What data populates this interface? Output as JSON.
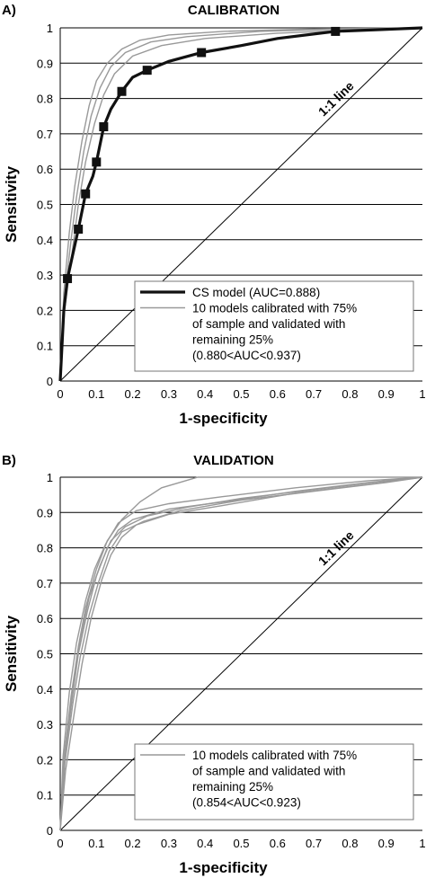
{
  "chart_data": [
    {
      "type": "line",
      "panel_letter": "A)",
      "title": "CALIBRATION",
      "xlabel": "1-specificity",
      "ylabel": "Sensitivity",
      "xlim": [
        0,
        1
      ],
      "ylim": [
        0,
        1
      ],
      "x_ticks": [
        "0",
        "0.1",
        "0.2",
        "0.3",
        "0.4",
        "0.5",
        "0.6",
        "0.7",
        "0.8",
        "0.9",
        "1"
      ],
      "y_ticks": [
        "0",
        "0.1",
        "0.2",
        "0.3",
        "0.4",
        "0.5",
        "0.6",
        "0.7",
        "0.8",
        "0.9",
        "1"
      ],
      "grid": "horizontal",
      "diagonal_label": "1:1 line",
      "legend": [
        "CS model (AUC=0.888)",
        "10 models calibrated with 75%",
        "of sample and validated with",
        "remaining 25%",
        "(0.880<AUC<0.937)"
      ],
      "legend_position": "bottom-right",
      "series": [
        {
          "name": "CS model (AUC=0.888)",
          "color": "#111111",
          "style": "thick",
          "markers": [
            [
              0.02,
              0.29
            ],
            [
              0.05,
              0.43
            ],
            [
              0.07,
              0.53
            ],
            [
              0.1,
              0.62
            ],
            [
              0.12,
              0.72
            ],
            [
              0.17,
              0.82
            ],
            [
              0.24,
              0.88
            ],
            [
              0.39,
              0.93
            ],
            [
              0.76,
              0.99
            ]
          ],
          "values": [
            [
              0,
              0
            ],
            [
              0.01,
              0.2
            ],
            [
              0.02,
              0.29
            ],
            [
              0.035,
              0.36
            ],
            [
              0.05,
              0.43
            ],
            [
              0.07,
              0.53
            ],
            [
              0.09,
              0.58
            ],
            [
              0.1,
              0.62
            ],
            [
              0.12,
              0.72
            ],
            [
              0.14,
              0.77
            ],
            [
              0.17,
              0.82
            ],
            [
              0.2,
              0.86
            ],
            [
              0.24,
              0.88
            ],
            [
              0.3,
              0.905
            ],
            [
              0.39,
              0.93
            ],
            [
              0.5,
              0.95
            ],
            [
              0.6,
              0.97
            ],
            [
              0.76,
              0.99
            ],
            [
              0.88,
              0.995
            ],
            [
              1,
              1
            ]
          ]
        },
        {
          "name": "10 models calibrated with 75% of sample and validated with remaining 25% (0.880<AUC<0.937)",
          "color": "#999999",
          "style": "thin",
          "curves": [
            [
              [
                0,
                0
              ],
              [
                0.01,
                0.25
              ],
              [
                0.025,
                0.42
              ],
              [
                0.04,
                0.55
              ],
              [
                0.06,
                0.68
              ],
              [
                0.08,
                0.78
              ],
              [
                0.1,
                0.85
              ],
              [
                0.13,
                0.9
              ],
              [
                0.17,
                0.94
              ],
              [
                0.22,
                0.965
              ],
              [
                0.3,
                0.98
              ],
              [
                0.45,
                0.99
              ],
              [
                0.7,
                0.997
              ],
              [
                1,
                1
              ]
            ],
            [
              [
                0,
                0
              ],
              [
                0.01,
                0.22
              ],
              [
                0.03,
                0.4
              ],
              [
                0.045,
                0.52
              ],
              [
                0.065,
                0.65
              ],
              [
                0.085,
                0.75
              ],
              [
                0.11,
                0.83
              ],
              [
                0.14,
                0.89
              ],
              [
                0.18,
                0.93
              ],
              [
                0.25,
                0.96
              ],
              [
                0.35,
                0.975
              ],
              [
                0.55,
                0.99
              ],
              [
                0.8,
                0.997
              ],
              [
                1,
                1
              ]
            ],
            [
              [
                0,
                0
              ],
              [
                0.012,
                0.2
              ],
              [
                0.035,
                0.38
              ],
              [
                0.05,
                0.5
              ],
              [
                0.07,
                0.62
              ],
              [
                0.095,
                0.73
              ],
              [
                0.12,
                0.81
              ],
              [
                0.15,
                0.87
              ],
              [
                0.2,
                0.92
              ],
              [
                0.28,
                0.95
              ],
              [
                0.4,
                0.97
              ],
              [
                0.6,
                0.985
              ],
              [
                0.85,
                0.995
              ],
              [
                1,
                1
              ]
            ]
          ]
        }
      ]
    },
    {
      "type": "line",
      "panel_letter": "B)",
      "title": "VALIDATION",
      "xlabel": "1-specificity",
      "ylabel": "Sensitivity",
      "xlim": [
        0,
        1
      ],
      "ylim": [
        0,
        1
      ],
      "x_ticks": [
        "0",
        "0.1",
        "0.2",
        "0.3",
        "0.4",
        "0.5",
        "0.6",
        "0.7",
        "0.8",
        "0.9",
        "1"
      ],
      "y_ticks": [
        "0",
        "0.1",
        "0.2",
        "0.3",
        "0.4",
        "0.5",
        "0.6",
        "0.7",
        "0.8",
        "0.9",
        "1"
      ],
      "grid": "horizontal",
      "diagonal_label": "1:1 line",
      "legend": [
        "10 models calibrated with 75%",
        "of sample and validated with",
        "remaining 25%",
        "(0.854<AUC<0.923)"
      ],
      "legend_position": "bottom-right",
      "series": [
        {
          "name": "10 models calibrated with 75% of sample and validated with remaining 25% (0.854<AUC<0.923)",
          "color": "#999999",
          "style": "thin",
          "curves": [
            [
              [
                0,
                0
              ],
              [
                0.01,
                0.2
              ],
              [
                0.03,
                0.38
              ],
              [
                0.05,
                0.52
              ],
              [
                0.07,
                0.63
              ],
              [
                0.1,
                0.74
              ],
              [
                0.13,
                0.82
              ],
              [
                0.17,
                0.88
              ],
              [
                0.22,
                0.93
              ],
              [
                0.28,
                0.97
              ],
              [
                0.38,
                1.0
              ],
              [
                1,
                1
              ]
            ],
            [
              [
                0,
                0
              ],
              [
                0.01,
                0.18
              ],
              [
                0.03,
                0.35
              ],
              [
                0.05,
                0.5
              ],
              [
                0.075,
                0.62
              ],
              [
                0.1,
                0.72
              ],
              [
                0.13,
                0.8
              ],
              [
                0.16,
                0.85
              ],
              [
                0.2,
                0.88
              ],
              [
                0.3,
                0.91
              ],
              [
                0.45,
                0.93
              ],
              [
                0.65,
                0.96
              ],
              [
                0.85,
                0.985
              ],
              [
                1,
                1
              ]
            ],
            [
              [
                0,
                0
              ],
              [
                0.012,
                0.22
              ],
              [
                0.035,
                0.4
              ],
              [
                0.055,
                0.54
              ],
              [
                0.08,
                0.66
              ],
              [
                0.11,
                0.75
              ],
              [
                0.14,
                0.82
              ],
              [
                0.18,
                0.86
              ],
              [
                0.24,
                0.89
              ],
              [
                0.35,
                0.915
              ],
              [
                0.5,
                0.94
              ],
              [
                0.7,
                0.965
              ],
              [
                0.9,
                0.99
              ],
              [
                1,
                1
              ]
            ],
            [
              [
                0,
                0
              ],
              [
                0.015,
                0.17
              ],
              [
                0.04,
                0.34
              ],
              [
                0.06,
                0.47
              ],
              [
                0.085,
                0.6
              ],
              [
                0.115,
                0.71
              ],
              [
                0.14,
                0.78
              ],
              [
                0.17,
                0.83
              ],
              [
                0.21,
                0.865
              ],
              [
                0.3,
                0.895
              ],
              [
                0.45,
                0.92
              ],
              [
                0.65,
                0.955
              ],
              [
                0.85,
                0.98
              ],
              [
                1,
                1
              ]
            ],
            [
              [
                0,
                0
              ],
              [
                0.008,
                0.21
              ],
              [
                0.025,
                0.39
              ],
              [
                0.045,
                0.53
              ],
              [
                0.07,
                0.65
              ],
              [
                0.095,
                0.74
              ],
              [
                0.125,
                0.81
              ],
              [
                0.16,
                0.87
              ],
              [
                0.21,
                0.905
              ],
              [
                0.3,
                0.925
              ],
              [
                0.45,
                0.945
              ],
              [
                0.65,
                0.97
              ],
              [
                0.85,
                0.99
              ],
              [
                1,
                1
              ]
            ],
            [
              [
                0,
                0
              ],
              [
                0.013,
                0.19
              ],
              [
                0.035,
                0.36
              ],
              [
                0.055,
                0.49
              ],
              [
                0.08,
                0.61
              ],
              [
                0.105,
                0.7
              ],
              [
                0.135,
                0.79
              ],
              [
                0.17,
                0.845
              ],
              [
                0.23,
                0.875
              ],
              [
                0.33,
                0.905
              ],
              [
                0.5,
                0.935
              ],
              [
                0.7,
                0.96
              ],
              [
                0.9,
                0.985
              ],
              [
                1,
                1
              ]
            ]
          ]
        }
      ]
    }
  ]
}
